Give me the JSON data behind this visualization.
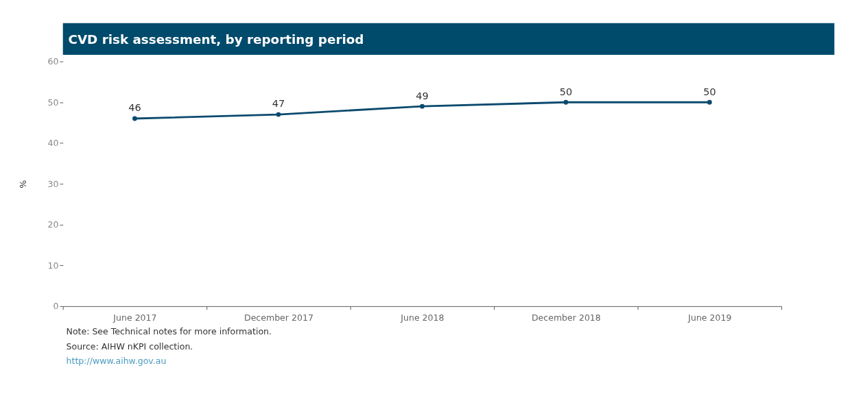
{
  "chart_data": {
    "type": "line",
    "title": "CVD risk assessment, by reporting period",
    "categories": [
      "June 2017",
      "December 2017",
      "June 2018",
      "December 2018",
      "June 2019"
    ],
    "series": [
      {
        "color": "#0b4a6e",
        "values": [
          46,
          47,
          49,
          50,
          50
        ]
      }
    ],
    "ylabel": "%",
    "ylim": [
      0,
      60
    ],
    "yticks": [
      0,
      10,
      20,
      30,
      40,
      50,
      60
    ],
    "data_labels": true,
    "marker": "circle",
    "line_style": "solid",
    "grid": false,
    "legend": false,
    "annotations": [
      "Note: See Technical notes for more information.",
      "Source: AIHW nKPI collection.",
      "http://www.aihw.gov.au"
    ]
  }
}
